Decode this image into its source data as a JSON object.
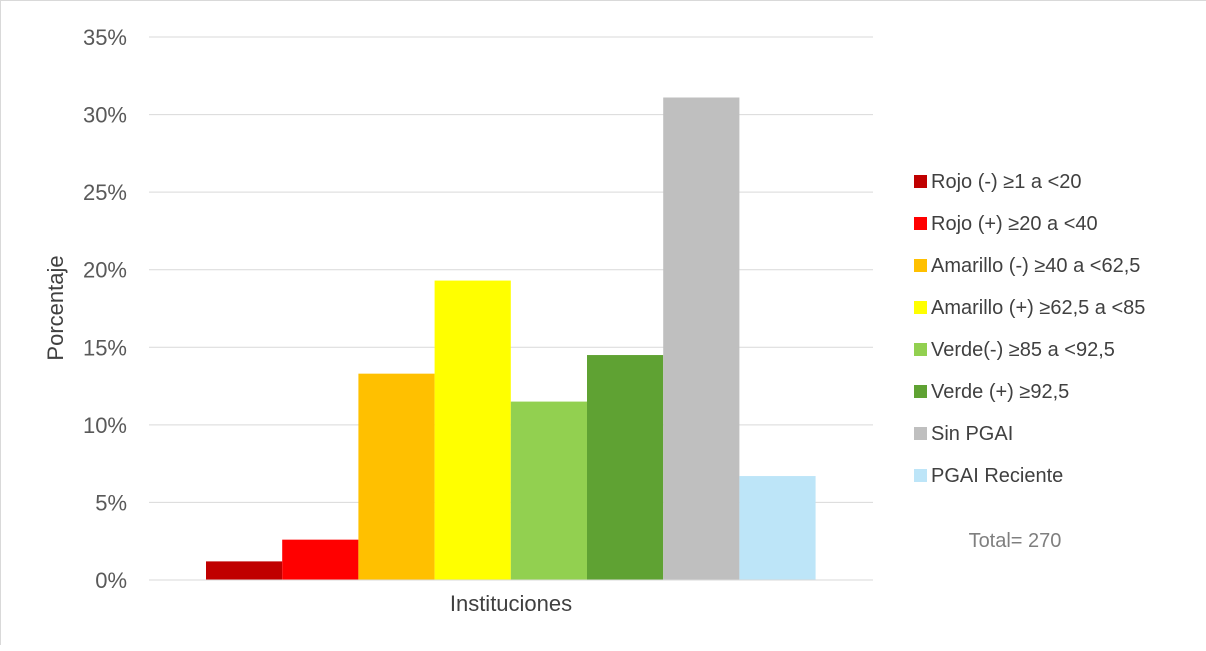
{
  "chart_data": {
    "type": "bar",
    "categories": [
      "Instituciones"
    ],
    "series": [
      {
        "name": "Rojo (-) ≥1 a <20",
        "values": [
          1.2
        ],
        "color": "#c00000"
      },
      {
        "name": "Rojo (+) ≥20 a <40",
        "values": [
          2.6
        ],
        "color": "#ff0000"
      },
      {
        "name": "Amarillo (-) ≥40 a <62,5",
        "values": [
          13.3
        ],
        "color": "#ffc000"
      },
      {
        "name": "Amarillo (+) ≥62,5 a <85",
        "values": [
          19.3
        ],
        "color": "#ffff00"
      },
      {
        "name": "Verde(-) ≥85 a <92,5",
        "values": [
          11.5
        ],
        "color": "#92d050"
      },
      {
        "name": "Verde (+) ≥92,5",
        "values": [
          14.5
        ],
        "color": "#5fa233"
      },
      {
        "name": "Sin PGAI",
        "values": [
          31.1
        ],
        "color": "#bfbfbf"
      },
      {
        "name": "PGAI Reciente",
        "values": [
          6.7
        ],
        "color": "#bde5f8"
      }
    ],
    "ylabel": "Porcentaje",
    "xlabel": "Instituciones",
    "ylim": [
      0,
      35
    ],
    "yticks": [
      0,
      5,
      10,
      15,
      20,
      25,
      30,
      35
    ],
    "ytick_labels": [
      "0%",
      "5%",
      "10%",
      "15%",
      "20%",
      "25%",
      "30%",
      "35%"
    ],
    "grid": true,
    "legend_position": "right",
    "annotation": "Total= 270"
  }
}
